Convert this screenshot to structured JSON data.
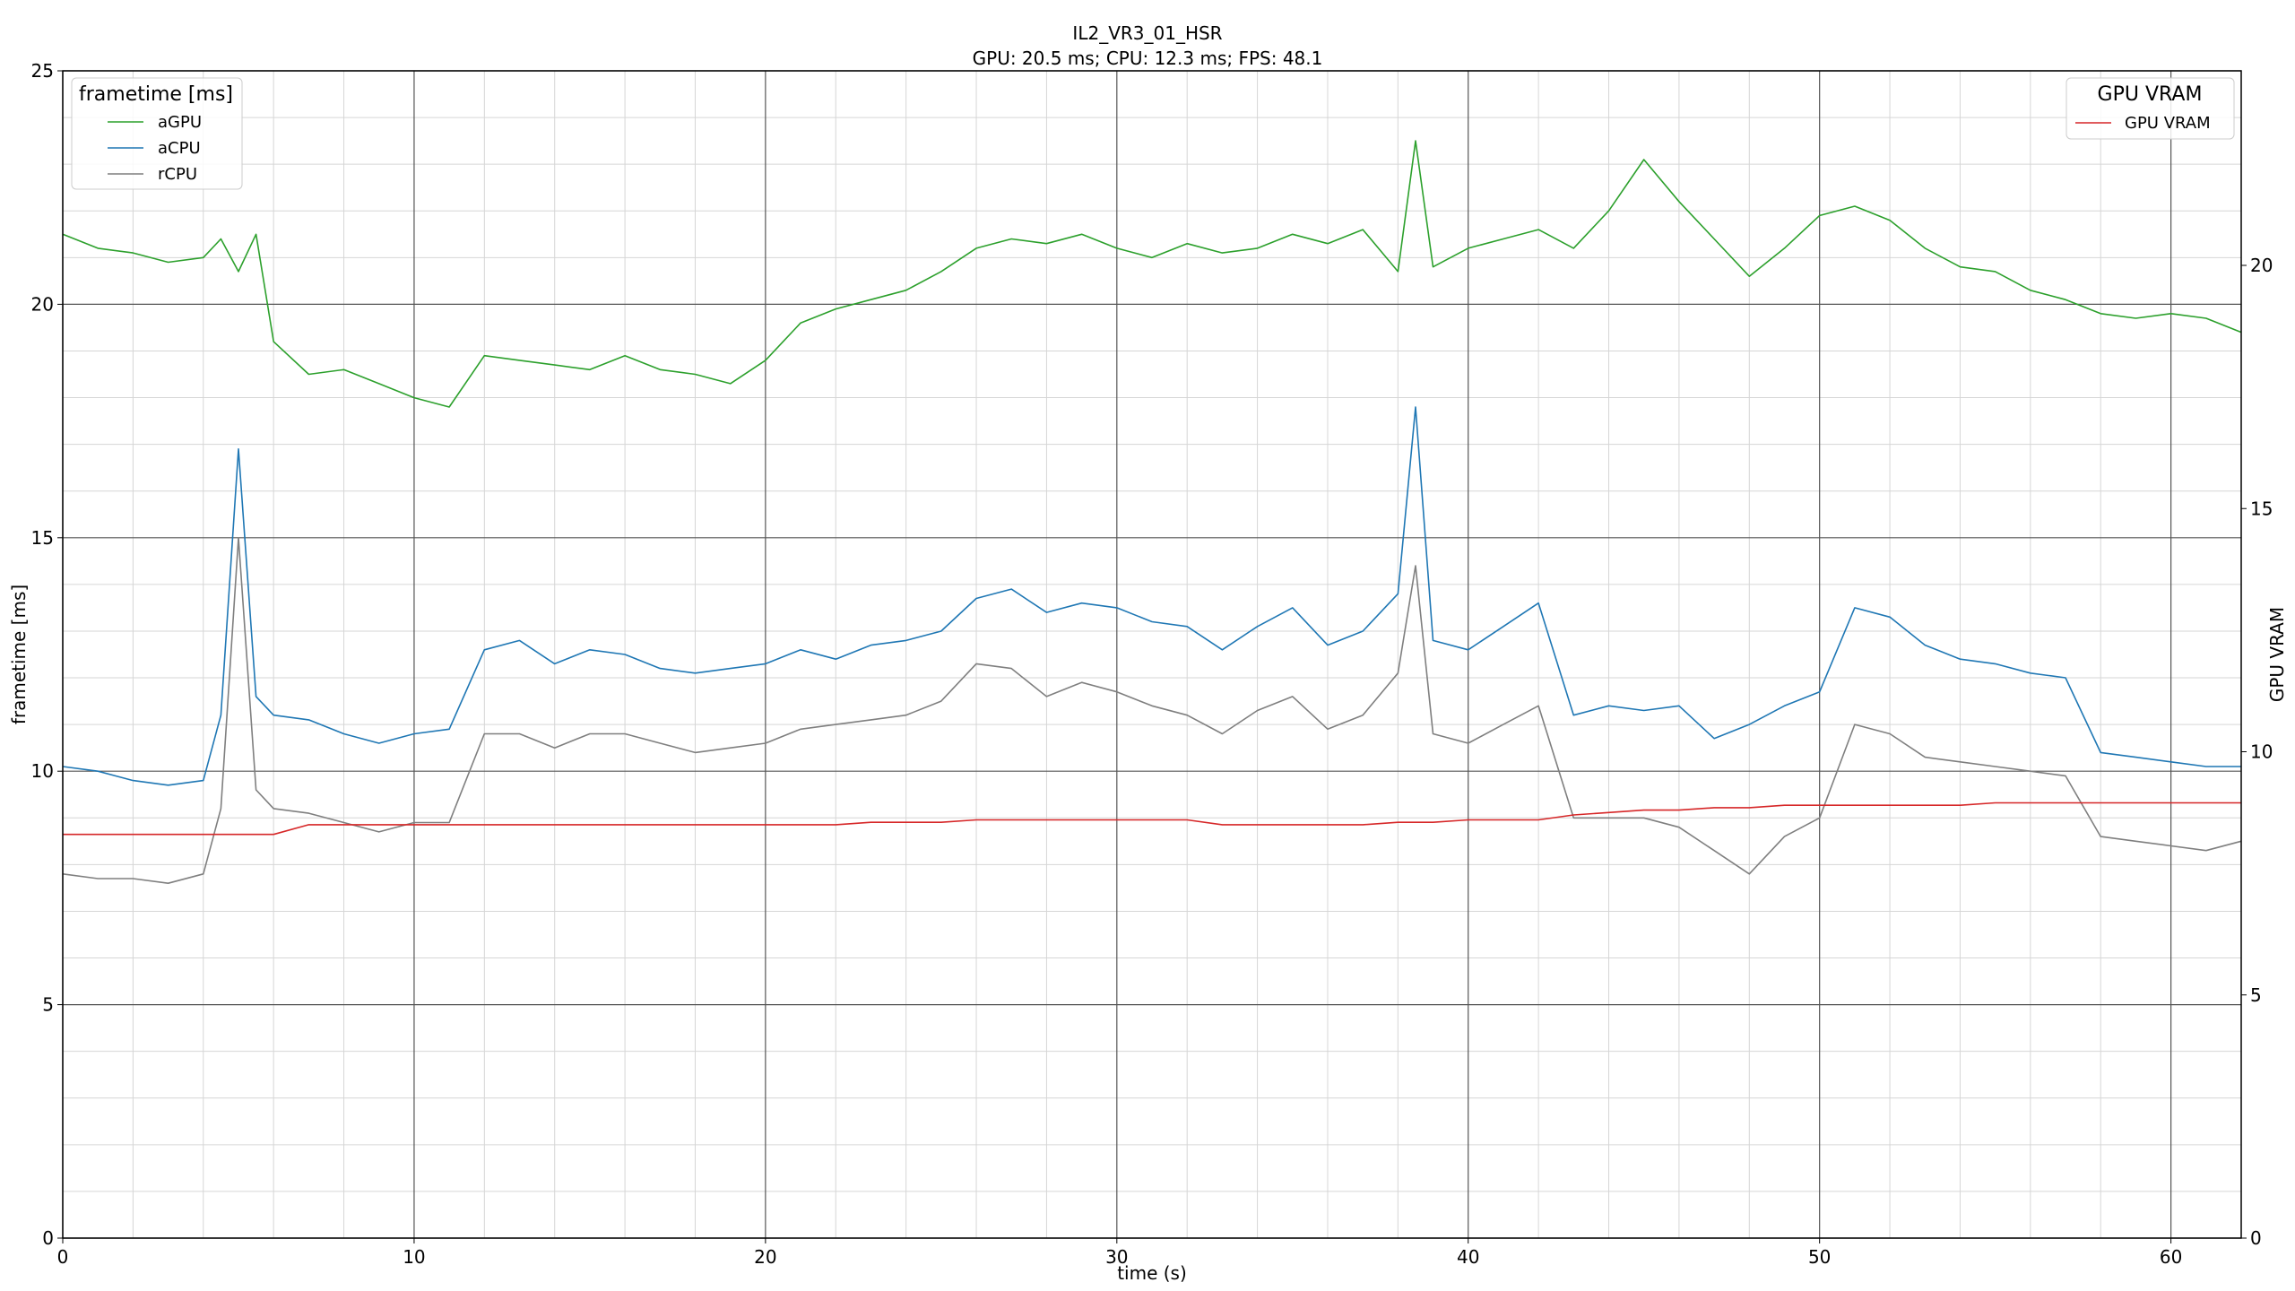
{
  "chart_data": {
    "type": "line",
    "title": "IL2_VR3_01_HSR",
    "subtitle": "GPU: 20.5 ms;  CPU: 12.3 ms;  FPS: 48.1",
    "xlabel": "time (s)",
    "ylabel": "frametime [ms]",
    "y2label": "GPU VRAM",
    "xlim": [
      0,
      62
    ],
    "ylim": [
      0,
      25
    ],
    "y2lim": [
      0,
      24.0
    ],
    "xticks": [
      "0",
      "10",
      "20",
      "30",
      "40",
      "50",
      "60"
    ],
    "yticks": [
      "0",
      "5",
      "10",
      "15",
      "20",
      "25"
    ],
    "y2ticks": [
      "0",
      "5",
      "10",
      "15",
      "20"
    ],
    "grid": true,
    "legend_left": {
      "title": "frametime [ms]",
      "placement": "top-left",
      "entries": [
        "aGPU",
        "aCPU",
        "rCPU"
      ]
    },
    "legend_right": {
      "title": "GPU VRAM",
      "placement": "top-right",
      "entries": [
        "GPU VRAM"
      ]
    },
    "x": [
      0,
      1,
      2,
      3,
      4,
      4.5,
      5,
      5.5,
      6,
      7,
      8,
      9,
      10,
      11,
      12,
      13,
      14,
      15,
      16,
      17,
      18,
      19,
      20,
      21,
      22,
      23,
      24,
      25,
      26,
      27,
      28,
      29,
      30,
      31,
      32,
      33,
      34,
      35,
      36,
      37,
      38,
      38.5,
      39,
      40,
      41,
      42,
      43,
      44,
      45,
      46,
      47,
      48,
      49,
      50,
      51,
      52,
      53,
      54,
      55,
      56,
      57,
      58,
      59,
      60,
      61,
      62
    ],
    "series": [
      {
        "name": "aGPU",
        "color": "#2ca02c",
        "axis": "left",
        "values": [
          21.5,
          21.2,
          21.1,
          20.9,
          21.0,
          21.4,
          20.7,
          21.5,
          19.2,
          18.5,
          18.6,
          18.3,
          18.0,
          17.8,
          18.9,
          18.8,
          18.7,
          18.6,
          18.9,
          18.6,
          18.5,
          18.3,
          18.8,
          19.6,
          19.9,
          20.1,
          20.3,
          20.7,
          21.2,
          21.4,
          21.3,
          21.5,
          21.2,
          21.0,
          21.3,
          21.1,
          21.2,
          21.5,
          21.3,
          21.6,
          20.7,
          23.5,
          20.8,
          21.2,
          21.4,
          21.6,
          21.2,
          22.0,
          23.1,
          22.2,
          21.4,
          20.6,
          21.2,
          21.9,
          22.1,
          21.8,
          21.2,
          20.8,
          20.7,
          20.3,
          20.1,
          19.8,
          19.7,
          19.8,
          19.7,
          19.4
        ]
      },
      {
        "name": "aCPU",
        "color": "#1f77b4",
        "axis": "left",
        "values": [
          10.1,
          10.0,
          9.8,
          9.7,
          9.8,
          11.2,
          16.9,
          11.6,
          11.2,
          11.1,
          10.8,
          10.6,
          10.8,
          10.9,
          12.6,
          12.8,
          12.3,
          12.6,
          12.5,
          12.2,
          12.1,
          12.2,
          12.3,
          12.6,
          12.4,
          12.7,
          12.8,
          13.0,
          13.7,
          13.9,
          13.4,
          13.6,
          13.5,
          13.2,
          13.1,
          12.6,
          13.1,
          13.5,
          12.7,
          13.0,
          13.8,
          17.8,
          12.8,
          12.6,
          13.1,
          13.6,
          11.2,
          11.4,
          11.3,
          11.4,
          10.7,
          11.0,
          11.4,
          11.7,
          13.5,
          13.3,
          12.7,
          12.4,
          12.3,
          12.1,
          12.0,
          10.4,
          10.3,
          10.2,
          10.1,
          10.1
        ]
      },
      {
        "name": "rCPU",
        "color": "#7f7f7f",
        "axis": "left",
        "values": [
          7.8,
          7.7,
          7.7,
          7.6,
          7.8,
          9.2,
          15.0,
          9.6,
          9.2,
          9.1,
          8.9,
          8.7,
          8.9,
          8.9,
          10.8,
          10.8,
          10.5,
          10.8,
          10.8,
          10.6,
          10.4,
          10.5,
          10.6,
          10.9,
          11.0,
          11.1,
          11.2,
          11.5,
          12.3,
          12.2,
          11.6,
          11.9,
          11.7,
          11.4,
          11.2,
          10.8,
          11.3,
          11.6,
          10.9,
          11.2,
          12.1,
          14.4,
          10.8,
          10.6,
          11.0,
          11.4,
          9.0,
          9.0,
          9.0,
          8.8,
          8.3,
          7.8,
          8.6,
          9.0,
          11.0,
          10.8,
          10.3,
          10.2,
          10.1,
          10.0,
          9.9,
          8.6,
          8.5,
          8.4,
          8.3,
          8.5
        ]
      },
      {
        "name": "GPU VRAM",
        "color": "#d62728",
        "axis": "right",
        "values": [
          8.3,
          8.3,
          8.3,
          8.3,
          8.3,
          8.3,
          8.3,
          8.3,
          8.3,
          8.5,
          8.5,
          8.5,
          8.5,
          8.5,
          8.5,
          8.5,
          8.5,
          8.5,
          8.5,
          8.5,
          8.5,
          8.5,
          8.5,
          8.5,
          8.5,
          8.55,
          8.55,
          8.55,
          8.6,
          8.6,
          8.6,
          8.6,
          8.6,
          8.6,
          8.6,
          8.5,
          8.5,
          8.5,
          8.5,
          8.5,
          8.55,
          8.55,
          8.55,
          8.6,
          8.6,
          8.6,
          8.7,
          8.75,
          8.8,
          8.8,
          8.85,
          8.85,
          8.9,
          8.9,
          8.9,
          8.9,
          8.9,
          8.9,
          8.95,
          8.95,
          8.95,
          8.95,
          8.95,
          8.95,
          8.95,
          8.95
        ]
      }
    ]
  }
}
